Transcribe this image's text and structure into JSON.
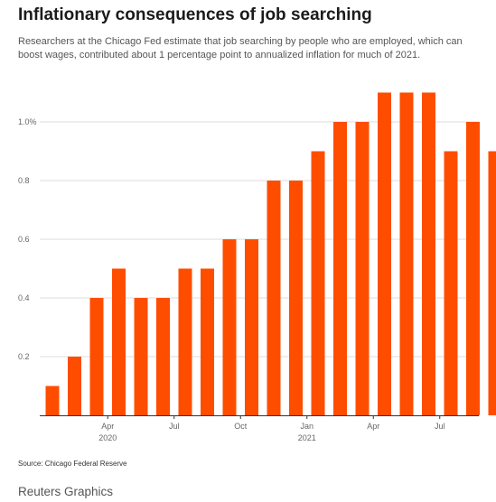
{
  "title": "Inflationary consequences of job searching",
  "subtitle": "Researchers at the Chicago Fed estimate that job searching by people who are employed, which can boost wages,  contributed about 1 percentage point to annualized inflation for much of 2021.",
  "source": "Source: Chicago Federal Reserve",
  "brand": "Reuters Graphics",
  "colors": {
    "bar": "#ff4d00",
    "grid": "#dcdcdc",
    "axis": "#333333",
    "tick_text": "#666666"
  },
  "chart_data": {
    "type": "bar",
    "categories": [
      "2020-01",
      "2020-02",
      "2020-03",
      "2020-04",
      "2020-05",
      "2020-06",
      "2020-07",
      "2020-08",
      "2020-09",
      "2020-10",
      "2020-11",
      "2020-12",
      "2021-01",
      "2021-02",
      "2021-03",
      "2021-04",
      "2021-05",
      "2021-06",
      "2021-07",
      "2021-08",
      "2021-09"
    ],
    "values": [
      0.1,
      0.2,
      0.4,
      0.5,
      0.4,
      0.4,
      0.5,
      0.5,
      0.6,
      0.6,
      0.8,
      0.8,
      0.9,
      1.0,
      1.0,
      1.1,
      1.1,
      1.1,
      0.9,
      1.0,
      0.9
    ],
    "ylim": [
      0,
      1.1
    ],
    "yticks": [
      {
        "value": 0.2,
        "label": "0.2"
      },
      {
        "value": 0.4,
        "label": "0.4"
      },
      {
        "value": 0.6,
        "label": "0.6"
      },
      {
        "value": 0.8,
        "label": "0.8"
      },
      {
        "value": 1.0,
        "label": "1.0%"
      }
    ],
    "xticks": [
      {
        "category": "2020-03",
        "label": "Apr",
        "year": "2020"
      },
      {
        "category": "2020-06",
        "label": "Jul",
        "year": ""
      },
      {
        "category": "2020-09",
        "label": "Oct",
        "year": ""
      },
      {
        "category": "2020-12",
        "label": "Jan",
        "year": "2021"
      },
      {
        "category": "2021-03",
        "label": "Apr",
        "year": ""
      },
      {
        "category": "2021-06",
        "label": "Jul",
        "year": ""
      }
    ],
    "grid": true
  }
}
